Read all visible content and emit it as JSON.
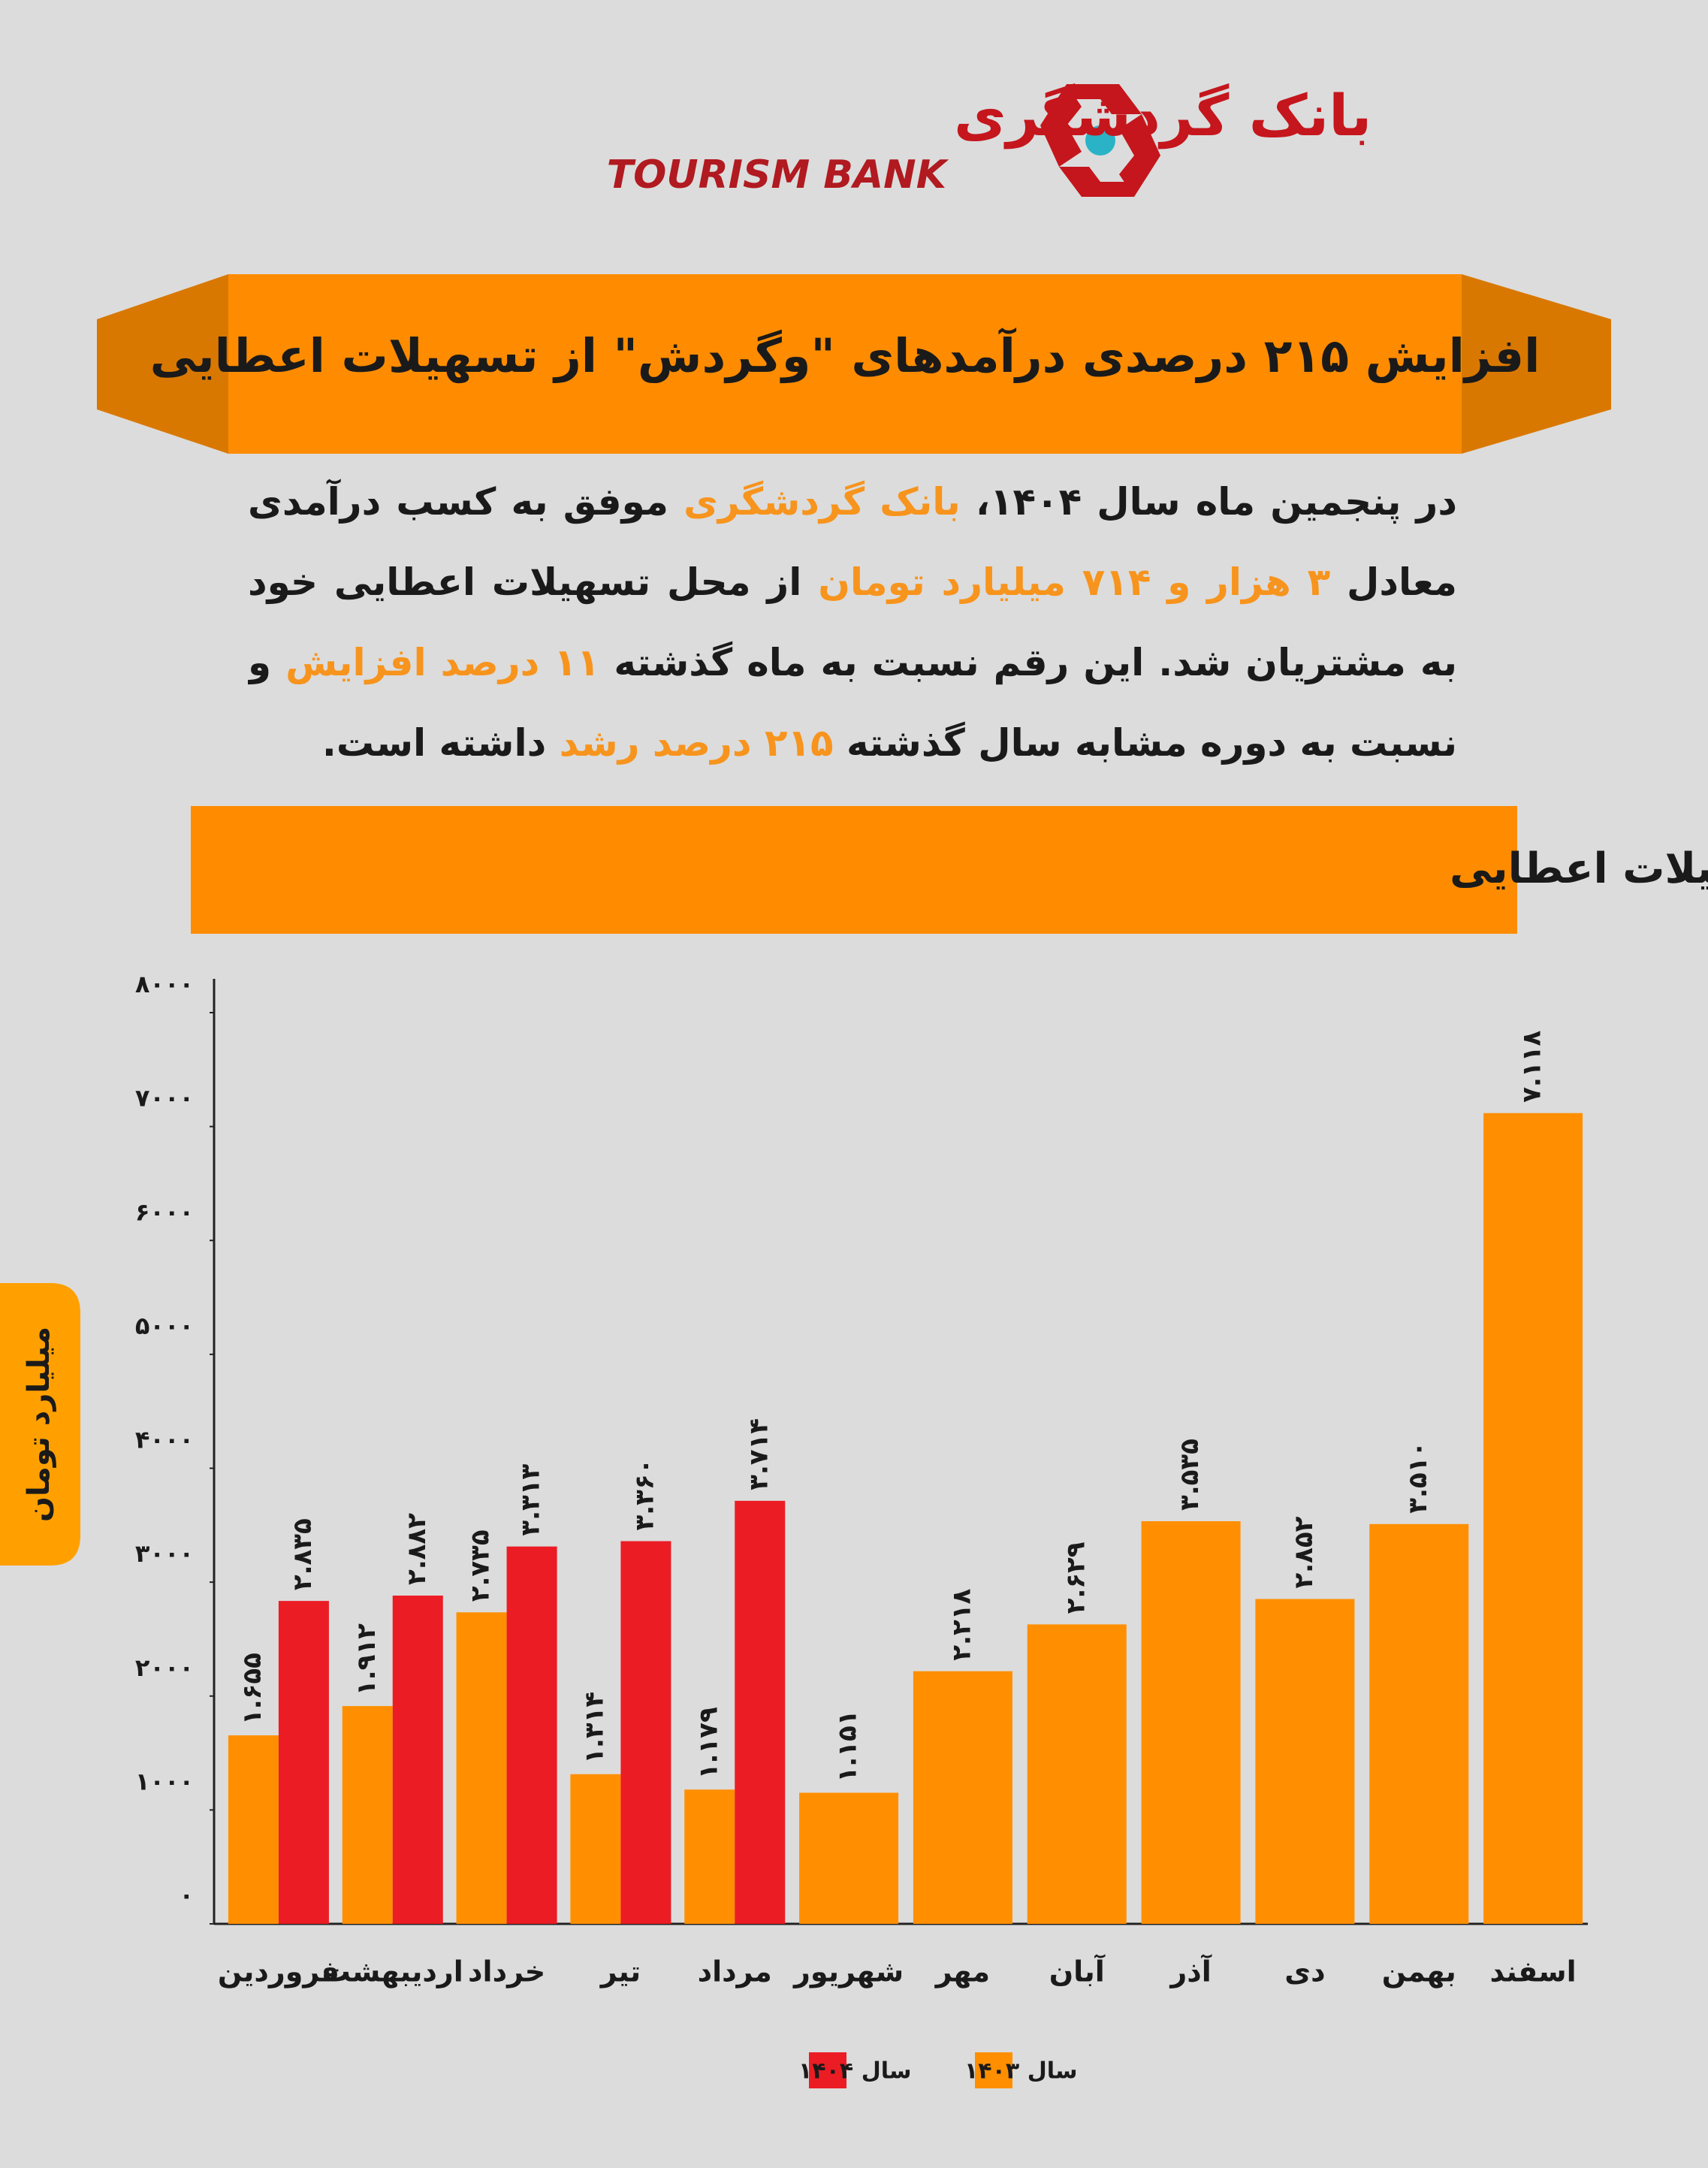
{
  "header": {
    "brand_fa": "بانک گردشگری",
    "brand_en": "TOURISM BANK",
    "title": "افزایش ۲۱۵ درصدی درآمدهای \"وگردش\" از تسهیلات اعطایی"
  },
  "body": {
    "paragraph": [
      {
        "text": "در پنجمین ماه سال ۱۴۰۴، ",
        "highlight": false
      },
      {
        "text": "بانک گردشگری",
        "highlight": true
      },
      {
        "text": " موفق به کسب درآمدی معادل ",
        "highlight": false
      },
      {
        "text": "۳ هزار و ۷۱۴ میلیارد تومان",
        "highlight": true
      },
      {
        "text": " از محل تسهیلات اعطایی خود به مشتریان شد. این رقم نسبت به ماه گذشته ",
        "highlight": false
      },
      {
        "text": "۱۱ درصد افزایش",
        "highlight": true
      },
      {
        "text": " و نسبت به دوره مشابه سال گذشته ",
        "highlight": false
      },
      {
        "text": "۲۱۵ درصد رشد",
        "highlight": true
      },
      {
        "text": " داشته است.",
        "highlight": false
      }
    ]
  },
  "chart_data": {
    "type": "bar",
    "title": "میزان درآمد ماهانه \"وگردش\" از محل تسهیلات اعطایی",
    "ylabel": "میلیارد تومان",
    "categories": [
      "فروردین",
      "اردیبهشت",
      "خرداد",
      "تیر",
      "مرداد",
      "شهریور",
      "مهر",
      "آبان",
      "آذر",
      "دی",
      "بهمن",
      "اسفند"
    ],
    "series": [
      {
        "name": "سال ۱۴۰۳",
        "color": "#ff8f00",
        "values": [
          1655,
          1912,
          2735,
          1314,
          1179,
          1151,
          2218,
          2629,
          3535,
          2852,
          3510,
          7118
        ],
        "value_labels": [
          "۱.۶۵۵",
          "۱.۹۱۲",
          "۲.۷۳۵",
          "۱.۳۱۴",
          "۱.۱۷۹",
          "۱.۱۵۱",
          "۲.۲۱۸",
          "۲.۶۲۹",
          "۳.۵۳۵",
          "۲.۸۵۲",
          "۳.۵۱۰",
          "۷.۱۱۸"
        ]
      },
      {
        "name": "سال ۱۴۰۴",
        "color": "#ec1c24",
        "values": [
          2835,
          2882,
          3313,
          3360,
          3714,
          null,
          null,
          null,
          null,
          null,
          null,
          null
        ],
        "value_labels": [
          "۲.۸۳۵",
          "۲.۸۸۲",
          "۳.۳۱۳",
          "۳.۳۶۰",
          "۳.۷۱۴",
          null,
          null,
          null,
          null,
          null,
          null,
          null
        ]
      }
    ],
    "ylim": [
      0,
      8000
    ],
    "yticks": [
      {
        "value": 0,
        "label": "۰"
      },
      {
        "value": 1000,
        "label": "۱۰۰۰"
      },
      {
        "value": 2000,
        "label": "۲۰۰۰"
      },
      {
        "value": 3000,
        "label": "۳۰۰۰"
      },
      {
        "value": 4000,
        "label": "۴۰۰۰"
      },
      {
        "value": 5000,
        "label": "۵۰۰۰"
      },
      {
        "value": 6000,
        "label": "۶۰۰۰"
      },
      {
        "value": 7000,
        "label": "۷۰۰۰"
      },
      {
        "value": 8000,
        "label": "۸۰۰۰"
      }
    ],
    "grid": false
  }
}
